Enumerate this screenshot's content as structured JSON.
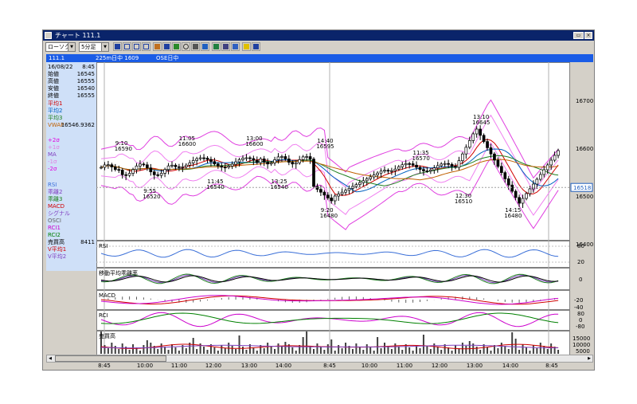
{
  "window": {
    "title": "チャート 111.1"
  },
  "toolbar": {
    "symbol_combo": "ローソク",
    "interval_combo": "5分足"
  },
  "infobar": {
    "code": "111.1",
    "session": "225m日中 1609",
    "ose": "OSE日中"
  },
  "sidebar": {
    "date": "16/08/22",
    "time": "8:45",
    "ohlc": [
      {
        "label": "始値",
        "value": "16545"
      },
      {
        "label": "高値",
        "value": "16555"
      },
      {
        "label": "安値",
        "value": "16540"
      },
      {
        "label": "終値",
        "value": "16555"
      }
    ],
    "ma_labels": [
      "平均1",
      "平均2",
      "平均3"
    ],
    "vwap": {
      "label": "VWAP",
      "value": "16546.9362"
    },
    "bands": [
      "+2σ",
      "+1σ",
      "MA",
      "-1σ",
      "-2σ"
    ],
    "indicators": [
      "RSI",
      "乖離2",
      "乖離3",
      "MACD",
      "シグナル",
      "OSCI",
      "RCI1",
      "RCI2"
    ],
    "volume": {
      "label": "売買高",
      "value": "8411"
    },
    "vma": [
      "V平均1",
      "V平均2"
    ]
  },
  "price_axis": {
    "ticks": [
      "16700",
      "16600",
      "16500",
      "16400"
    ],
    "current": "16518"
  },
  "annotations": [
    {
      "time": "9:10",
      "price": "16590"
    },
    {
      "time": "9:55",
      "price": "16520"
    },
    {
      "time": "11:05",
      "price": "16600"
    },
    {
      "time": "11:45",
      "price": "16540"
    },
    {
      "time": "13:00",
      "price": "16600"
    },
    {
      "time": "13:25",
      "price": "16540"
    },
    {
      "time": "14:40",
      "price": "16595"
    },
    {
      "time": "9:20",
      "price": "16480"
    },
    {
      "time": "11:35",
      "price": "16570"
    },
    {
      "time": "12:30",
      "price": "16510"
    },
    {
      "time": "13:10",
      "price": "16645"
    },
    {
      "time": "14:15",
      "price": "16480"
    }
  ],
  "panels": {
    "rsi": {
      "label": "RSI",
      "ticks": [
        "80",
        "20"
      ]
    },
    "dev": {
      "label": "移動平均乖離率",
      "ticks": [
        "0"
      ]
    },
    "macd": {
      "label": "MACD",
      "ticks": [
        "-20",
        "-40"
      ]
    },
    "rci": {
      "label": "RCI",
      "ticks": [
        "80",
        "0",
        "-80"
      ]
    },
    "vol": {
      "label": "売買高",
      "ticks": [
        "15000",
        "10000",
        "5000"
      ]
    }
  },
  "xaxis": {
    "labels": [
      "8:45",
      "10:00",
      "11:00",
      "12:00",
      "13:00",
      "14:00",
      "8:45",
      "10:00",
      "11:00",
      "12:00",
      "13:00",
      "14:00",
      "8:45"
    ]
  },
  "colors": {
    "title": "#0a246a",
    "infobar": "#1a5ce6",
    "sidebar": "#cfe0f8",
    "band": "#ff00ff",
    "rsi": "#3a6fd8",
    "rci_green": "#008000",
    "rci_magenta": "#cc00cc"
  }
}
